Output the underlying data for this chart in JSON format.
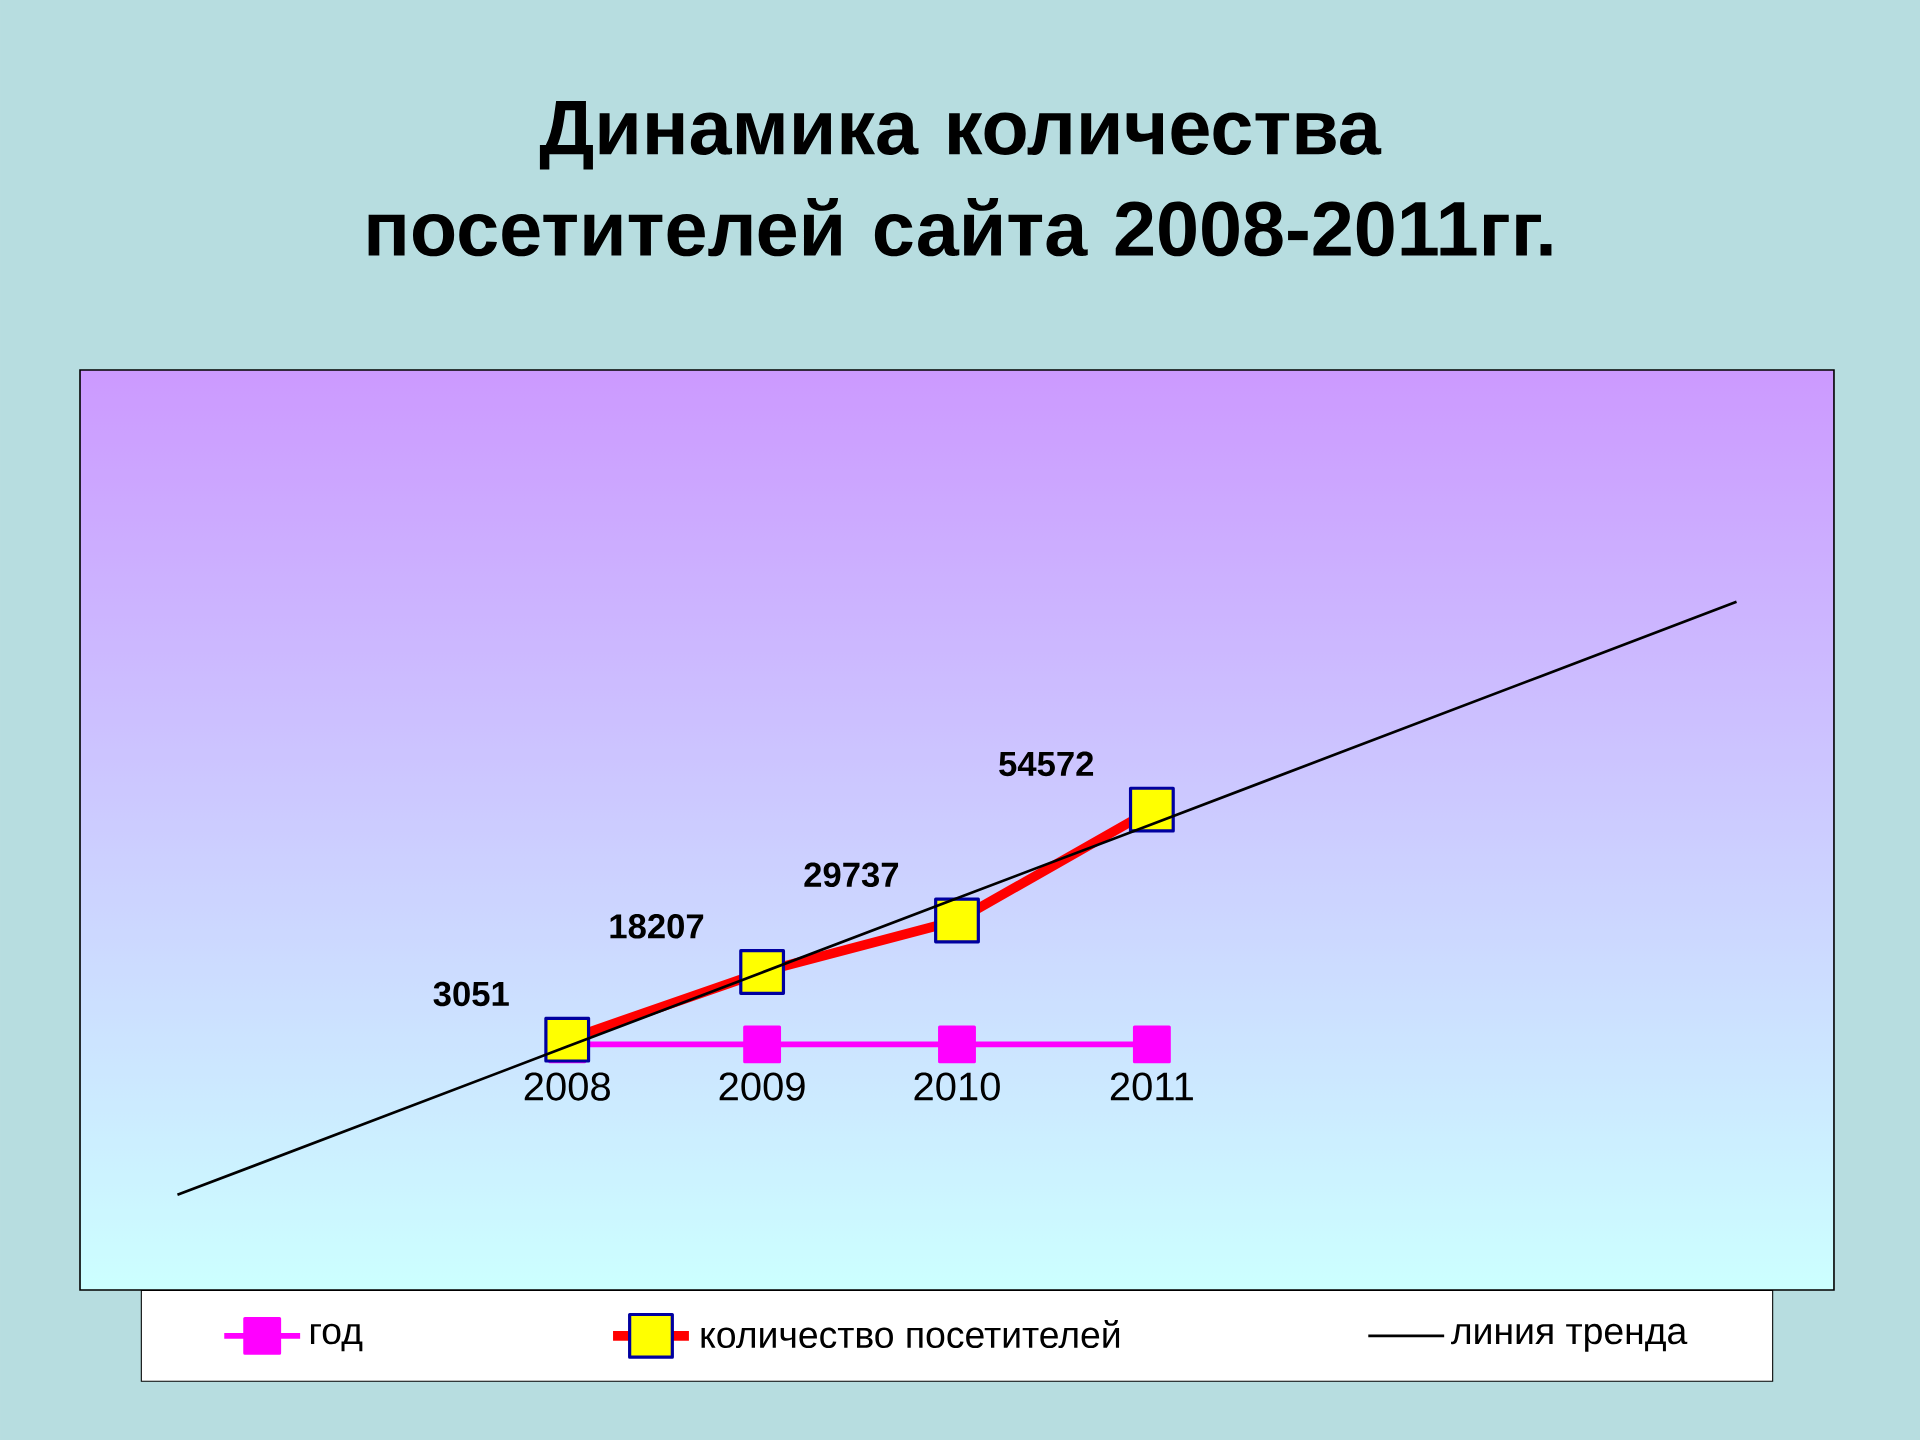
{
  "chart_data": {
    "type": "line",
    "title": "Динамика количества посетителей сайта 2008-2011гг.",
    "categories": [
      null,
      null,
      null,
      null,
      null,
      null,
      null,
      null,
      null
    ],
    "series": [
      {
        "name": "год",
        "color": "#ff00ff",
        "marker": "square",
        "values": [
          null,
          null,
          2008,
          2009,
          2010,
          2011,
          null,
          null,
          null
        ],
        "value_labels": [
          null,
          null,
          "2008",
          "2009",
          "2010",
          "2011",
          null,
          null,
          null
        ]
      },
      {
        "name": "количество посетителей",
        "color": "#ff0000",
        "marker": "square",
        "values": [
          null,
          null,
          3051,
          18207,
          29737,
          54572,
          null,
          null,
          null
        ],
        "value_labels": [
          null,
          null,
          "3051",
          "18207",
          "29737",
          "54572",
          null,
          null,
          null
        ]
      },
      {
        "name": "линия тренда",
        "color": "#000000",
        "marker": "none",
        "values": [
          -31700,
          -15100,
          1500,
          18100,
          34700,
          51300,
          67900,
          84500,
          101100
        ]
      }
    ],
    "ylim": [
      -53000,
      153000
    ],
    "tick_labels": false,
    "legend": "bottom"
  }
}
